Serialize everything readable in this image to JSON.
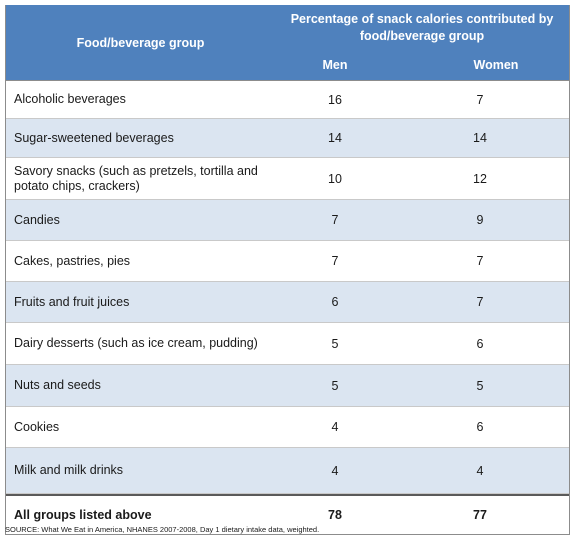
{
  "header": {
    "group_label": "Food/beverage group",
    "span_label": "Percentage of snack calories contributed by food/beverage group",
    "col_men": "Men",
    "col_women": "Women"
  },
  "rows": [
    {
      "name": "Alcoholic beverages",
      "men": "16",
      "women": "7"
    },
    {
      "name": "Sugar-sweetened beverages",
      "men": "14",
      "women": "14"
    },
    {
      "name": "Savory snacks (such as pretzels, tortilla and potato chips, crackers)",
      "men": "10",
      "women": "12"
    },
    {
      "name": "Candies",
      "men": "7",
      "women": "9"
    },
    {
      "name": "Cakes, pastries, pies",
      "men": "7",
      "women": "7"
    },
    {
      "name": "Fruits and fruit juices",
      "men": "6",
      "women": "7"
    },
    {
      "name": "Dairy desserts (such as ice cream, pudding)",
      "men": "5",
      "women": "6"
    },
    {
      "name": "Nuts and seeds",
      "men": "5",
      "women": "5"
    },
    {
      "name": "Cookies",
      "men": "4",
      "women": "6"
    },
    {
      "name": "Milk and milk drinks",
      "men": "4",
      "women": "4"
    }
  ],
  "total": {
    "name": "All groups listed above",
    "men": "78",
    "women": "77"
  },
  "source": "SOURCE: What We Eat in America, NHANES 2007-2008, Day 1 dietary intake data, weighted.",
  "colors": {
    "header_bg": "#4f81bd",
    "alt_row_bg": "#dbe5f1"
  }
}
